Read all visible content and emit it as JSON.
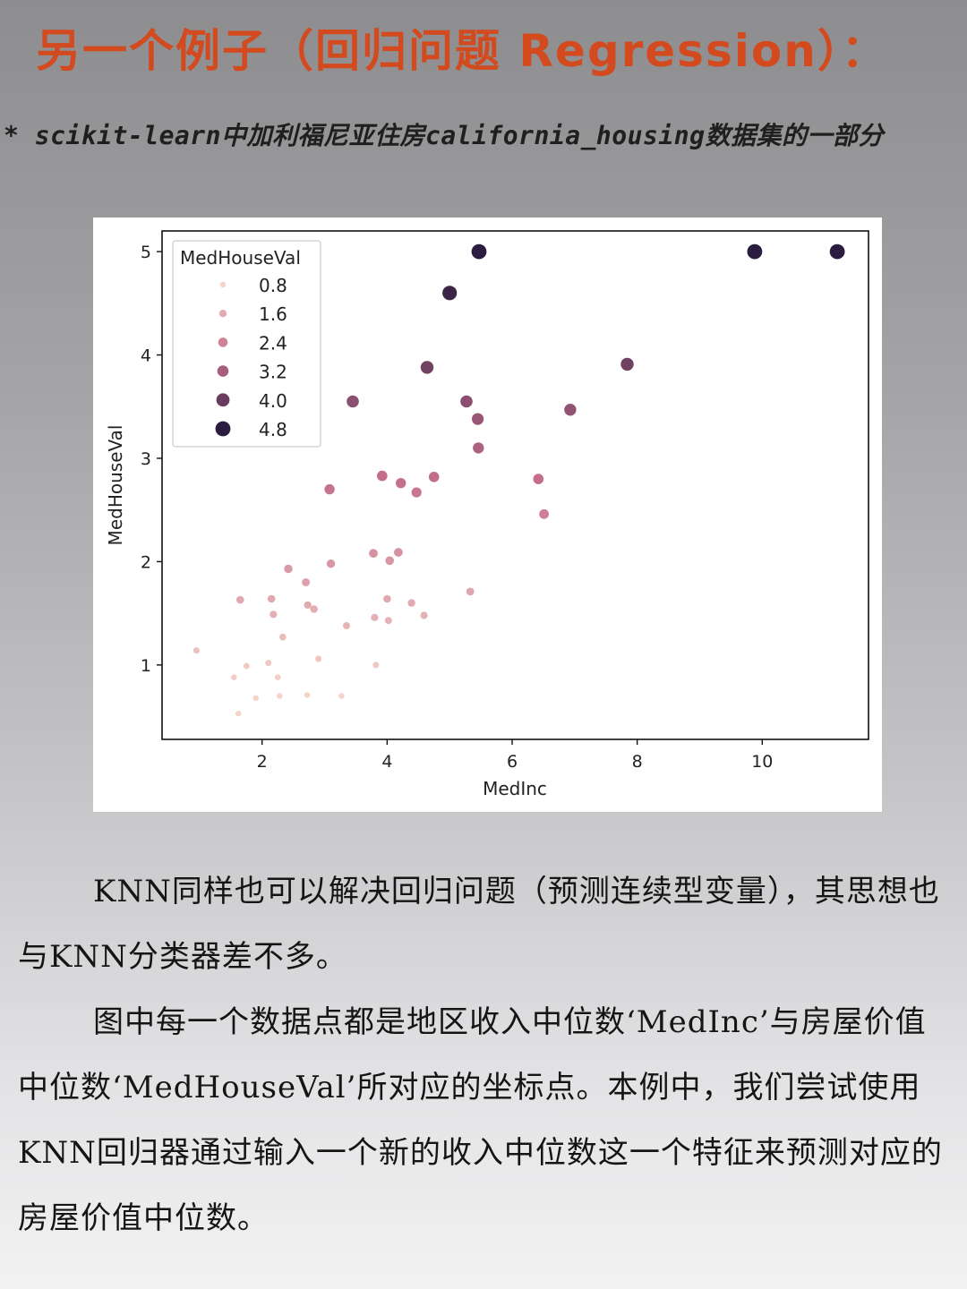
{
  "header": {
    "title": "另一个例子（回归问题 Regression）：",
    "subtitle": "* scikit-learn中加利福尼亚住房california_housing数据集的一部分"
  },
  "body": {
    "paragraph1": "KNN同样也可以解决回归问题（预测连续型变量），其思想也与KNN分类器差不多。",
    "paragraph2": "图中每一个数据点都是地区收入中位数‘MedInc’与房屋价值中位数‘MedHouseVal’所对应的坐标点。本例中，我们尝试使用KNN回归器通过输入一个新的收入中位数这一个特征来预测对应的房屋价值中位数。"
  },
  "chart_data": {
    "type": "scatter",
    "xlabel": "MedInc",
    "ylabel": "MedHouseVal",
    "xlim": [
      0.4,
      11.7
    ],
    "ylim": [
      0.28,
      5.2
    ],
    "xticks": [
      2,
      4,
      6,
      8,
      10
    ],
    "yticks": [
      1,
      2,
      3,
      4,
      5
    ],
    "grid": false,
    "legend": {
      "title": "MedHouseVal",
      "placement": "top-left",
      "entries": [
        "0.8",
        "1.6",
        "2.4",
        "3.2",
        "4.0",
        "4.8"
      ],
      "levels": [
        0.8,
        1.6,
        2.4,
        3.2,
        4.0,
        4.8
      ]
    },
    "hue": "MedHouseVal",
    "color_map": {
      "low": "#f4d3c9",
      "high": "#2b1d3f"
    },
    "points": [
      {
        "x": 0.95,
        "y": 1.14
      },
      {
        "x": 1.55,
        "y": 0.88
      },
      {
        "x": 1.65,
        "y": 1.63
      },
      {
        "x": 1.62,
        "y": 0.53
      },
      {
        "x": 1.75,
        "y": 0.99
      },
      {
        "x": 1.9,
        "y": 0.68
      },
      {
        "x": 2.1,
        "y": 1.02
      },
      {
        "x": 2.15,
        "y": 1.64
      },
      {
        "x": 2.18,
        "y": 1.49
      },
      {
        "x": 2.25,
        "y": 0.88
      },
      {
        "x": 2.28,
        "y": 0.7
      },
      {
        "x": 2.33,
        "y": 1.27
      },
      {
        "x": 2.42,
        "y": 1.93
      },
      {
        "x": 2.7,
        "y": 1.8
      },
      {
        "x": 2.72,
        "y": 0.71
      },
      {
        "x": 2.73,
        "y": 1.58
      },
      {
        "x": 2.83,
        "y": 1.54
      },
      {
        "x": 2.9,
        "y": 1.06
      },
      {
        "x": 3.08,
        "y": 2.7
      },
      {
        "x": 3.1,
        "y": 1.98
      },
      {
        "x": 3.27,
        "y": 0.7
      },
      {
        "x": 3.35,
        "y": 1.38
      },
      {
        "x": 3.45,
        "y": 3.55
      },
      {
        "x": 3.78,
        "y": 2.08
      },
      {
        "x": 3.8,
        "y": 1.46
      },
      {
        "x": 3.82,
        "y": 1.0
      },
      {
        "x": 3.92,
        "y": 2.83
      },
      {
        "x": 4.0,
        "y": 1.64
      },
      {
        "x": 4.02,
        "y": 1.43
      },
      {
        "x": 4.04,
        "y": 2.01
      },
      {
        "x": 4.18,
        "y": 2.09
      },
      {
        "x": 4.22,
        "y": 2.76
      },
      {
        "x": 4.39,
        "y": 1.6
      },
      {
        "x": 4.47,
        "y": 2.67
      },
      {
        "x": 4.59,
        "y": 1.48
      },
      {
        "x": 4.64,
        "y": 3.88
      },
      {
        "x": 4.75,
        "y": 2.82
      },
      {
        "x": 5.0,
        "y": 4.6
      },
      {
        "x": 5.27,
        "y": 3.55
      },
      {
        "x": 5.33,
        "y": 1.71
      },
      {
        "x": 5.45,
        "y": 3.38
      },
      {
        "x": 5.47,
        "y": 5.0
      },
      {
        "x": 5.46,
        "y": 3.1
      },
      {
        "x": 6.42,
        "y": 2.8
      },
      {
        "x": 6.51,
        "y": 2.46
      },
      {
        "x": 6.93,
        "y": 3.47
      },
      {
        "x": 7.84,
        "y": 3.91
      },
      {
        "x": 9.88,
        "y": 5.0
      },
      {
        "x": 11.2,
        "y": 5.0
      }
    ]
  }
}
